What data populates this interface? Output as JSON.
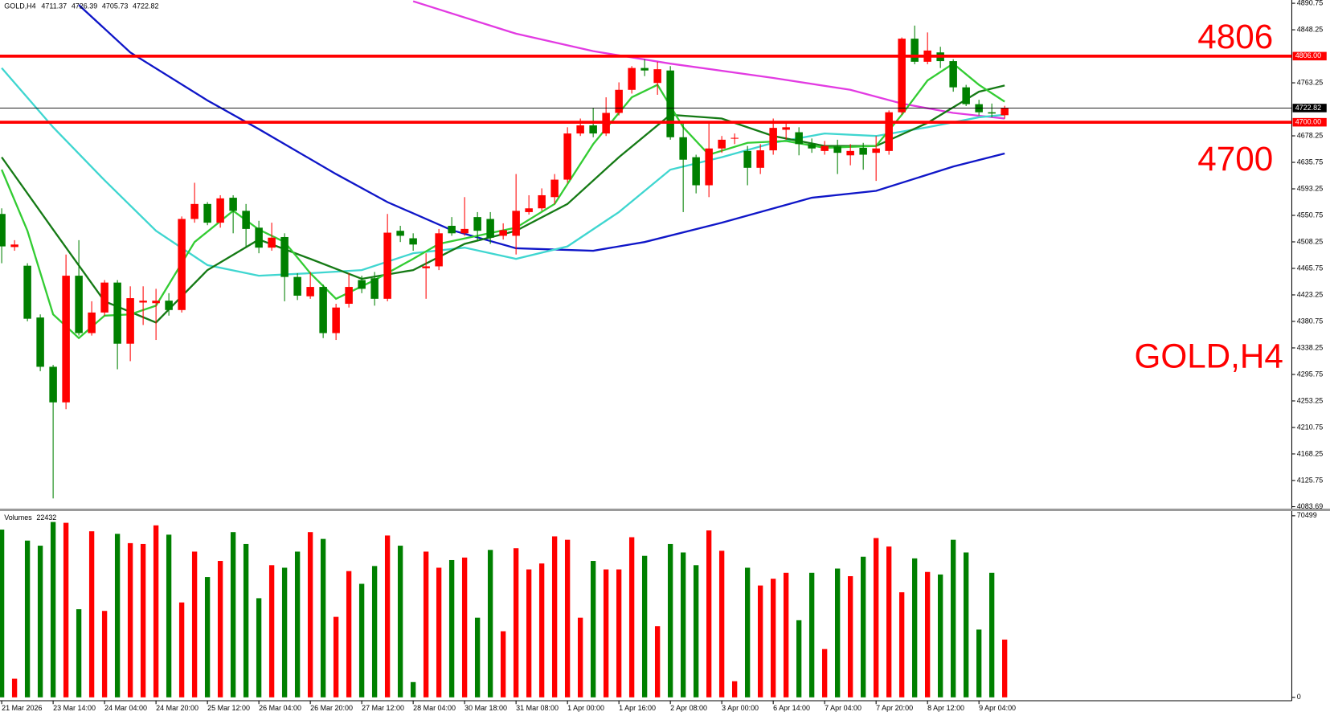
{
  "chart_data": {
    "type": "candlestick",
    "symbol": "GOLD,H4",
    "volume_title": "Volumes",
    "bull_color": "#ff0000",
    "bear_color": "#008000",
    "categories": [
      "21 Mar 2026",
      null,
      null,
      null,
      "23 Mar 14:00",
      null,
      null,
      null,
      "24 Mar 04:00",
      null,
      null,
      null,
      "24 Mar 20:00",
      null,
      null,
      null,
      "25 Mar 12:00",
      null,
      null,
      null,
      "26 Mar 04:00",
      null,
      null,
      null,
      "26 Mar 20:00",
      null,
      null,
      null,
      "27 Mar 12:00",
      null,
      null,
      null,
      "28 Mar 04:00",
      null,
      null,
      null,
      "30 Mar 18:00",
      null,
      null,
      null,
      "31 Mar 08:00",
      null,
      null,
      null,
      "1 Apr 00:00",
      null,
      null,
      null,
      "1 Apr 16:00",
      null,
      null,
      null,
      "2 Apr 08:00",
      null,
      null,
      null,
      "3 Apr 00:00",
      null,
      null,
      null,
      "6 Apr 14:00",
      null,
      null,
      null,
      "7 Apr 04:00",
      null,
      null,
      null,
      "7 Apr 20:00",
      null,
      null,
      null,
      "8 Apr 12:00",
      null,
      null,
      null,
      "9 Apr 04:00",
      null,
      null
    ],
    "open": [
      4553,
      4500,
      4470,
      4387,
      4308,
      4251,
      4454,
      4362,
      4395,
      4443,
      4345,
      4411,
      4410,
      4414,
      4399,
      4545,
      4569,
      4539,
      4579,
      4558,
      4531,
      4499,
      4516,
      4452,
      4421,
      4436,
      4362,
      4409,
      4447,
      4450,
      4417,
      4526,
      4514,
      4466,
      4469,
      4534,
      4522,
      4548,
      4545,
      4518,
      4518,
      4556,
      4562,
      4580,
      4608,
      4682,
      4695,
      4682,
      4715,
      4752,
      4787,
      4763,
      4783,
      4676,
      4644,
      4599,
      4658,
      4674,
      4654,
      4627,
      4655,
      4688,
      4684,
      4665,
      4654,
      4661,
      4647,
      4659,
      4651,
      4654,
      4716,
      4834,
      4797,
      4812,
      4798,
      4756,
      4729,
      4716,
      4711.37
    ],
    "high": [
      4562,
      4511,
      4474,
      4392,
      4311,
      4488,
      4511,
      4413,
      4447,
      4447,
      4437,
      4437,
      4433,
      4426,
      4549,
      4603,
      4572,
      4583,
      4583,
      4569,
      4542,
      4539,
      4522,
      4458,
      4460,
      4440,
      4409,
      4458,
      4454,
      4460,
      4553,
      4534,
      4522,
      4490,
      4529,
      4548,
      4580,
      4556,
      4556,
      4538,
      4617,
      4583,
      4594,
      4617,
      4692,
      4706,
      4723,
      4740,
      4764,
      4790,
      4801,
      4797,
      4790,
      4699,
      4648,
      4699,
      4678,
      4682,
      4662,
      4665,
      4706,
      4699,
      4692,
      4674,
      4670,
      4672,
      4665,
      4667,
      4678,
      4719,
      4836,
      4855,
      4844,
      4821,
      4801,
      4760,
      4736,
      4730,
      4726.39
    ],
    "low": [
      4474,
      4494,
      4381,
      4301,
      4097,
      4240,
      4358,
      4358,
      4390,
      4304,
      4317,
      4375,
      4351,
      4390,
      4395,
      4539,
      4535,
      4531,
      4522,
      4501,
      4490,
      4494,
      4413,
      4415,
      4417,
      4354,
      4351,
      4403,
      4426,
      4406,
      4413,
      4508,
      4494,
      4417,
      4463,
      4518,
      4518,
      4509,
      4505,
      4512,
      4488,
      4552,
      4558,
      4569,
      4603,
      4678,
      4676,
      4678,
      4711,
      4746,
      4774,
      4744,
      4672,
      4556,
      4586,
      4580,
      4651,
      4665,
      4599,
      4617,
      4648,
      4672,
      4647,
      4651,
      4648,
      4617,
      4631,
      4624,
      4606,
      4648,
      4712,
      4793,
      4793,
      4787,
      4749,
      4726,
      4711,
      4708,
      4705.73
    ],
    "close": [
      4501,
      4504,
      4385,
      4308,
      4251,
      4454,
      4362,
      4395,
      4443,
      4345,
      4418,
      4414,
      4414,
      4399,
      4545,
      4569,
      4539,
      4578,
      4558,
      4529,
      4499,
      4515,
      4452,
      4422,
      4436,
      4362,
      4403,
      4436,
      4433,
      4417,
      4523,
      4518,
      4504,
      4469,
      4522,
      4522,
      4529,
      4526,
      4515,
      4527,
      4558,
      4562,
      4583,
      4608,
      4682,
      4695,
      4682,
      4715,
      4752,
      4787,
      4783,
      4785,
      4676,
      4640,
      4599,
      4658,
      4672,
      4675,
      4627,
      4655,
      4691,
      4692,
      4665,
      4658,
      4662,
      4651,
      4654,
      4648,
      4658,
      4716,
      4834,
      4797,
      4815,
      4798,
      4756,
      4729,
      4716,
      4714,
      4722.82
    ],
    "volumes": [
      65142,
      7238,
      60865,
      58891,
      68103,
      67774,
      34216,
      64484,
      33558,
      63497,
      59878,
      59549,
      66787,
      63168,
      36848,
      56588,
      46718,
      52969,
      64155,
      59549,
      38493,
      51324,
      50337,
      56588,
      64155,
      61523,
      31255,
      49021,
      44086,
      50995,
      62839,
      58891,
      5922,
      56588,
      50337,
      53298,
      54285,
      30926,
      57246,
      25662,
      57904,
      49679,
      51982,
      62510,
      61194,
      30926,
      52969,
      49679,
      49679,
      62181,
      54943,
      27636,
      59549,
      56259,
      51324,
      64813,
      56917,
      6251,
      50337,
      43428,
      46060,
      48363,
      29939,
      48363,
      18753,
      50008,
      47047,
      54614,
      61852,
      58562,
      40796,
      53956,
      48692,
      47705,
      61194,
      56259,
      26320,
      48363,
      22432
    ],
    "moving_averages": [
      {
        "color": "#0f16c8",
        "x": [
          6,
          10,
          16,
          20,
          26,
          30,
          35,
          40,
          46,
          50,
          56,
          63,
          68,
          74,
          78
        ],
        "values": [
          4888,
          4812,
          4735,
          4689,
          4617,
          4572,
          4527,
          4498,
          4494,
          4508,
          4539,
          4579,
          4590,
          4629,
          4650
        ]
      },
      {
        "color": "#e23be2",
        "x": [
          32,
          40,
          46,
          52,
          60,
          66,
          70,
          74,
          78
        ],
        "values": [
          4894,
          4842,
          4814,
          4794,
          4771,
          4752,
          4730,
          4715,
          4706
        ]
      },
      {
        "color": "#3fd6d0",
        "x": [
          0,
          4,
          8,
          12,
          16,
          20,
          24,
          28,
          32,
          36,
          40,
          44,
          48,
          52,
          56,
          60,
          64,
          68,
          72,
          76,
          78
        ],
        "values": [
          4787,
          4692,
          4607,
          4526,
          4471,
          4454,
          4458,
          4463,
          4490,
          4499,
          4481,
          4501,
          4556,
          4624,
          4644,
          4667,
          4682,
          4678,
          4692,
          4708,
          4712
        ]
      },
      {
        "color": "#157a15",
        "x": [
          0,
          4,
          8,
          12,
          16,
          20,
          24,
          28,
          32,
          36,
          40,
          44,
          48,
          52,
          56,
          60,
          64,
          68,
          72,
          76,
          78
        ],
        "values": [
          4644,
          4528,
          4413,
          4379,
          4463,
          4512,
          4481,
          4449,
          4463,
          4505,
          4526,
          4569,
          4644,
          4712,
          4706,
          4678,
          4662,
          4662,
          4699,
          4749,
          4759
        ]
      },
      {
        "color": "#33cc33",
        "x": [
          0,
          2,
          4,
          6,
          8,
          10,
          12,
          15,
          18,
          20,
          22,
          24,
          26,
          29,
          32,
          34,
          37,
          40,
          43,
          46,
          49,
          51,
          53,
          55,
          58,
          61,
          64,
          68,
          70,
          72,
          74,
          76,
          78
        ],
        "values": [
          4624,
          4526,
          4392,
          4354,
          4390,
          4392,
          4406,
          4508,
          4558,
          4528,
          4508,
          4458,
          4417,
          4447,
          4481,
          4505,
          4518,
          4531,
          4569,
          4665,
          4740,
          4760,
          4692,
          4648,
          4667,
          4670,
          4659,
          4662,
          4712,
          4767,
          4794,
          4760,
          4733
        ]
      }
    ],
    "levels": [
      {
        "value": 4806,
        "label": "4806.00",
        "annotation": "4806"
      },
      {
        "value": 4700,
        "label": "4700.00",
        "annotation": "4700"
      }
    ],
    "level_color": "#ff0000",
    "ylim": [
      4080,
      4896
    ],
    "yticks": [
      4890.75,
      4848.25,
      4763.25,
      4678.25,
      4635.75,
      4593.25,
      4550.75,
      4508.25,
      4465.75,
      4423.25,
      4380.75,
      4338.25,
      4295.75,
      4253.25,
      4210.75,
      4168.25,
      4125.75,
      4083.69
    ],
    "volume_ylim": [
      0,
      70499
    ],
    "volume_ticks": [
      70499,
      0
    ]
  }
}
